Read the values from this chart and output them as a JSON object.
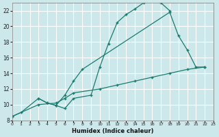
{
  "xlabel": "Humidex (Indice chaleur)",
  "bg_color": "#cce8eb",
  "grid_color": "#ffffff",
  "line_color": "#1a7a6e",
  "xlim": [
    0,
    23
  ],
  "ylim": [
    8,
    23
  ],
  "xticks": [
    0,
    1,
    2,
    3,
    4,
    5,
    6,
    7,
    8,
    9,
    10,
    11,
    12,
    13,
    14,
    15,
    16,
    17,
    18,
    19,
    20,
    21,
    22,
    23
  ],
  "yticks": [
    8,
    10,
    12,
    14,
    16,
    18,
    20,
    22
  ],
  "curve1_x": [
    0,
    1,
    3,
    4,
    5,
    6,
    7,
    9,
    10,
    11,
    12,
    13,
    14,
    15,
    16,
    17,
    18
  ],
  "curve1_y": [
    8.5,
    9.0,
    10.8,
    10.2,
    9.9,
    9.5,
    10.8,
    11.2,
    14.8,
    17.8,
    20.5,
    21.5,
    22.2,
    23.0,
    23.3,
    23.0,
    22.0
  ],
  "curve2_x": [
    3,
    4,
    5,
    6,
    7,
    8,
    18,
    19,
    20,
    21,
    22
  ],
  "curve2_y": [
    10.8,
    10.2,
    9.9,
    11.2,
    13.0,
    14.5,
    21.8,
    18.8,
    17.0,
    14.8,
    14.8
  ],
  "curve3_x": [
    0,
    3,
    5,
    6,
    7,
    10,
    12,
    14,
    16,
    18,
    20,
    22
  ],
  "curve3_y": [
    8.5,
    10.0,
    10.2,
    10.8,
    11.5,
    12.0,
    12.5,
    13.0,
    13.5,
    14.0,
    14.5,
    14.8
  ]
}
